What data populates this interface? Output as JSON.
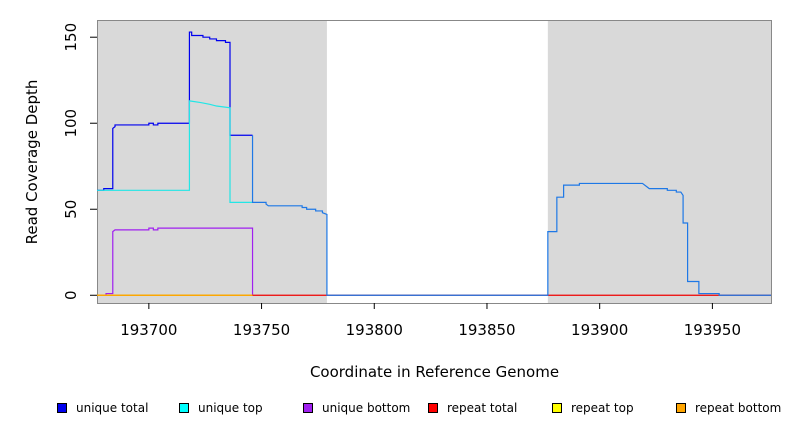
{
  "chart_data": {
    "type": "line",
    "xlabel": "Coordinate in Reference Genome",
    "ylabel": "Read Coverage Depth",
    "xlim": [
      193677,
      193976
    ],
    "ylim": [
      -4.5,
      160
    ],
    "x_ticks": [
      193700,
      193750,
      193800,
      193850,
      193900,
      193950
    ],
    "y_ticks": [
      0,
      50,
      100,
      150
    ],
    "shaded_regions": [
      {
        "x_start": 193677,
        "x_end": 193779
      },
      {
        "x_start": 193877,
        "x_end": 193976
      }
    ],
    "shaded_color": "#d9d9d9",
    "grid": false,
    "legend_position": "bottom",
    "series": [
      {
        "name": "unique total",
        "color": "#0000ee",
        "points": [
          [
            193677,
            61
          ],
          [
            193680,
            61
          ],
          [
            193680,
            62
          ],
          [
            193684,
            62
          ],
          [
            193684,
            97
          ],
          [
            193685,
            98
          ],
          [
            193685,
            99
          ],
          [
            193700,
            99
          ],
          [
            193700,
            100
          ],
          [
            193702,
            100
          ],
          [
            193702,
            99
          ],
          [
            193704,
            99
          ],
          [
            193704,
            100
          ],
          [
            193718,
            100
          ],
          [
            193718,
            153
          ],
          [
            193719,
            153
          ],
          [
            193719,
            151
          ],
          [
            193724,
            151
          ],
          [
            193724,
            150
          ],
          [
            193727,
            150
          ],
          [
            193727,
            149
          ],
          [
            193730,
            149
          ],
          [
            193730,
            148
          ],
          [
            193734,
            148
          ],
          [
            193734,
            147
          ],
          [
            193736,
            147
          ],
          [
            193736,
            93
          ],
          [
            193746,
            93
          ]
        ]
      },
      {
        "name": "unique top",
        "color": "#22e6e6",
        "points": [
          [
            193677,
            61
          ],
          [
            193718,
            61
          ],
          [
            193718,
            113
          ],
          [
            193723,
            112
          ],
          [
            193727,
            111
          ],
          [
            193730,
            110
          ],
          [
            193736,
            109
          ],
          [
            193736,
            54
          ],
          [
            193746,
            54
          ]
        ]
      },
      {
        "name": "unique bottom",
        "color": "#a020f0",
        "points": [
          [
            193681,
            0
          ],
          [
            193681,
            1
          ],
          [
            193684,
            1
          ],
          [
            193684,
            37
          ],
          [
            193685,
            38
          ],
          [
            193700,
            38
          ],
          [
            193700,
            39
          ],
          [
            193702,
            39
          ],
          [
            193702,
            38
          ],
          [
            193704,
            38
          ],
          [
            193704,
            39
          ],
          [
            193746,
            39
          ],
          [
            193746,
            0
          ]
        ]
      },
      {
        "name": "repeat total",
        "color": "#ee0000",
        "points": [
          [
            193677,
            0
          ],
          [
            193976,
            0
          ]
        ]
      },
      {
        "name": "repeat top",
        "color": "#e6e600",
        "points": [
          [
            193677,
            0
          ],
          [
            193746,
            0
          ]
        ]
      },
      {
        "name": "repeat bottom",
        "color": "#ffa500",
        "points": [
          [
            193677,
            0
          ],
          [
            193746,
            0
          ]
        ]
      },
      {
        "name": "",
        "color": "#1e78e6",
        "points": [
          [
            193746,
            93
          ],
          [
            193746,
            54
          ],
          [
            193752,
            54
          ],
          [
            193752,
            53
          ],
          [
            193753,
            52
          ],
          [
            193768,
            52
          ],
          [
            193768,
            51
          ],
          [
            193770,
            51
          ],
          [
            193770,
            50
          ],
          [
            193774,
            50
          ],
          [
            193774,
            49
          ],
          [
            193777,
            49
          ],
          [
            193777,
            48
          ],
          [
            193779,
            47
          ],
          [
            193779,
            0
          ],
          [
            193877,
            0
          ],
          [
            193877,
            37
          ],
          [
            193881,
            37
          ],
          [
            193881,
            57
          ],
          [
            193884,
            57
          ],
          [
            193884,
            64
          ],
          [
            193891,
            64
          ],
          [
            193891,
            65
          ],
          [
            193919,
            65
          ],
          [
            193921,
            63
          ],
          [
            193922,
            62
          ],
          [
            193930,
            62
          ],
          [
            193930,
            61
          ],
          [
            193934,
            61
          ],
          [
            193934,
            60
          ],
          [
            193936,
            60
          ],
          [
            193937,
            58
          ],
          [
            193937,
            42
          ],
          [
            193939,
            42
          ],
          [
            193939,
            8
          ],
          [
            193944,
            8
          ],
          [
            193944,
            1
          ],
          [
            193953,
            1
          ],
          [
            193953,
            0
          ],
          [
            193976,
            0
          ]
        ]
      }
    ]
  },
  "legend": [
    {
      "label": "unique total",
      "color": "#0000ee"
    },
    {
      "label": "unique top",
      "color": "#00ffff"
    },
    {
      "label": "unique bottom",
      "color": "#a020f0"
    },
    {
      "label": "repeat total",
      "color": "#ff0000"
    },
    {
      "label": "repeat top",
      "color": "#ffff00"
    },
    {
      "label": "repeat bottom",
      "color": "#ffa500"
    }
  ]
}
